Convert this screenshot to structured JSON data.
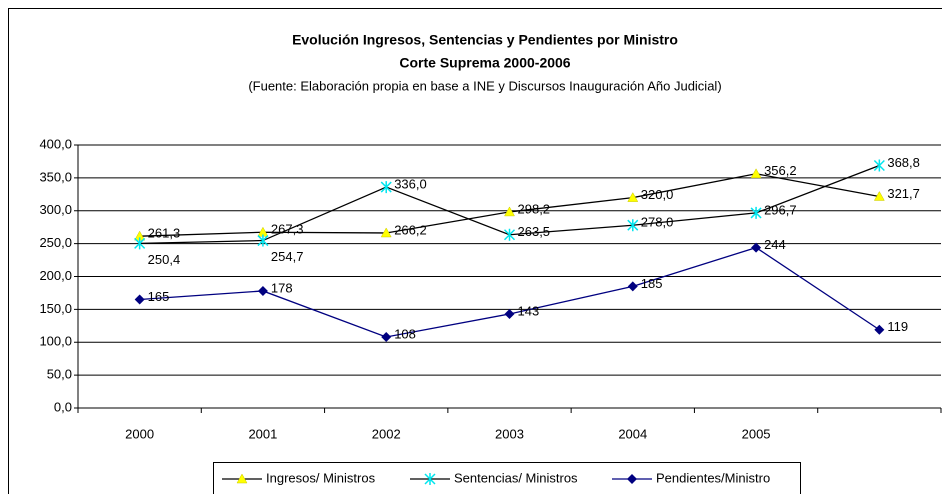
{
  "chart_data": {
    "type": "line",
    "title": "Evolución Ingresos, Sentencias y Pendientes por Ministro",
    "subtitle": "Corte Suprema 2000-2006",
    "note": "(Fuente: Elaboración propia en base a INE y Discursos Inauguración Año Judicial)",
    "categories": [
      "2000",
      "2001",
      "2002",
      "2003",
      "2004",
      "2005",
      null
    ],
    "ylim": [
      0,
      400
    ],
    "yticks": [
      {
        "value": 0,
        "label": "0,0"
      },
      {
        "value": 50,
        "label": "50,0"
      },
      {
        "value": 100,
        "label": "100,0"
      },
      {
        "value": 150,
        "label": "150,0"
      },
      {
        "value": 200,
        "label": "200,0"
      },
      {
        "value": 250,
        "label": "250,0"
      },
      {
        "value": 300,
        "label": "300,0"
      },
      {
        "value": 350,
        "label": "350,0"
      },
      {
        "value": 400,
        "label": "400,0"
      }
    ],
    "grid": true,
    "legend": "bottom",
    "series": [
      {
        "name": "Ingresos/ Ministros",
        "color": "#ffff00",
        "line_color": "#000000",
        "marker": "triangle",
        "values": [
          261.3,
          267.3,
          266.2,
          298.2,
          320.0,
          356.2,
          321.7
        ],
        "value_labels": [
          "261,3",
          "267,3",
          "266,2",
          "298,2",
          "320,0",
          "356,2",
          "321,7"
        ]
      },
      {
        "name": "Sentencias/ Ministros",
        "color": "#00e5ee",
        "line_color": "#000000",
        "marker": "star",
        "values": [
          250.4,
          254.7,
          336.0,
          263.5,
          278.0,
          296.7,
          368.8
        ],
        "value_labels": [
          "250,4",
          "254,7",
          "336,0",
          "263,5",
          "278,0",
          "296,7",
          "368,8"
        ]
      },
      {
        "name": "Pendientes/Ministro",
        "color": "#000080",
        "line_color": "#000080",
        "marker": "diamond",
        "values": [
          165,
          178,
          108,
          143,
          185,
          244,
          119
        ]
      }
    ]
  }
}
